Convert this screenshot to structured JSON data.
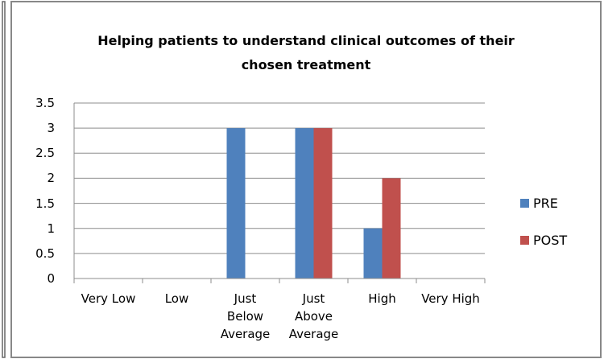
{
  "chart_data": {
    "type": "bar",
    "title": "Helping patients to understand clinical outcomes of their\nchosen treatment",
    "categories": [
      "Very Low",
      "Low",
      "Just\nBelow\nAverage",
      "Just\nAbove\nAverage",
      "High",
      "Very High"
    ],
    "series": [
      {
        "name": "PRE",
        "color": "#4f81bd",
        "values": [
          0,
          0,
          3,
          3,
          1,
          0
        ]
      },
      {
        "name": "POST",
        "color": "#c0504d",
        "values": [
          0,
          0,
          0,
          3,
          2,
          0
        ]
      }
    ],
    "ylim": [
      0,
      3.5
    ],
    "yticks": [
      0,
      0.5,
      1,
      1.5,
      2,
      2.5,
      3,
      3.5
    ],
    "grid": true,
    "legend": "right"
  }
}
